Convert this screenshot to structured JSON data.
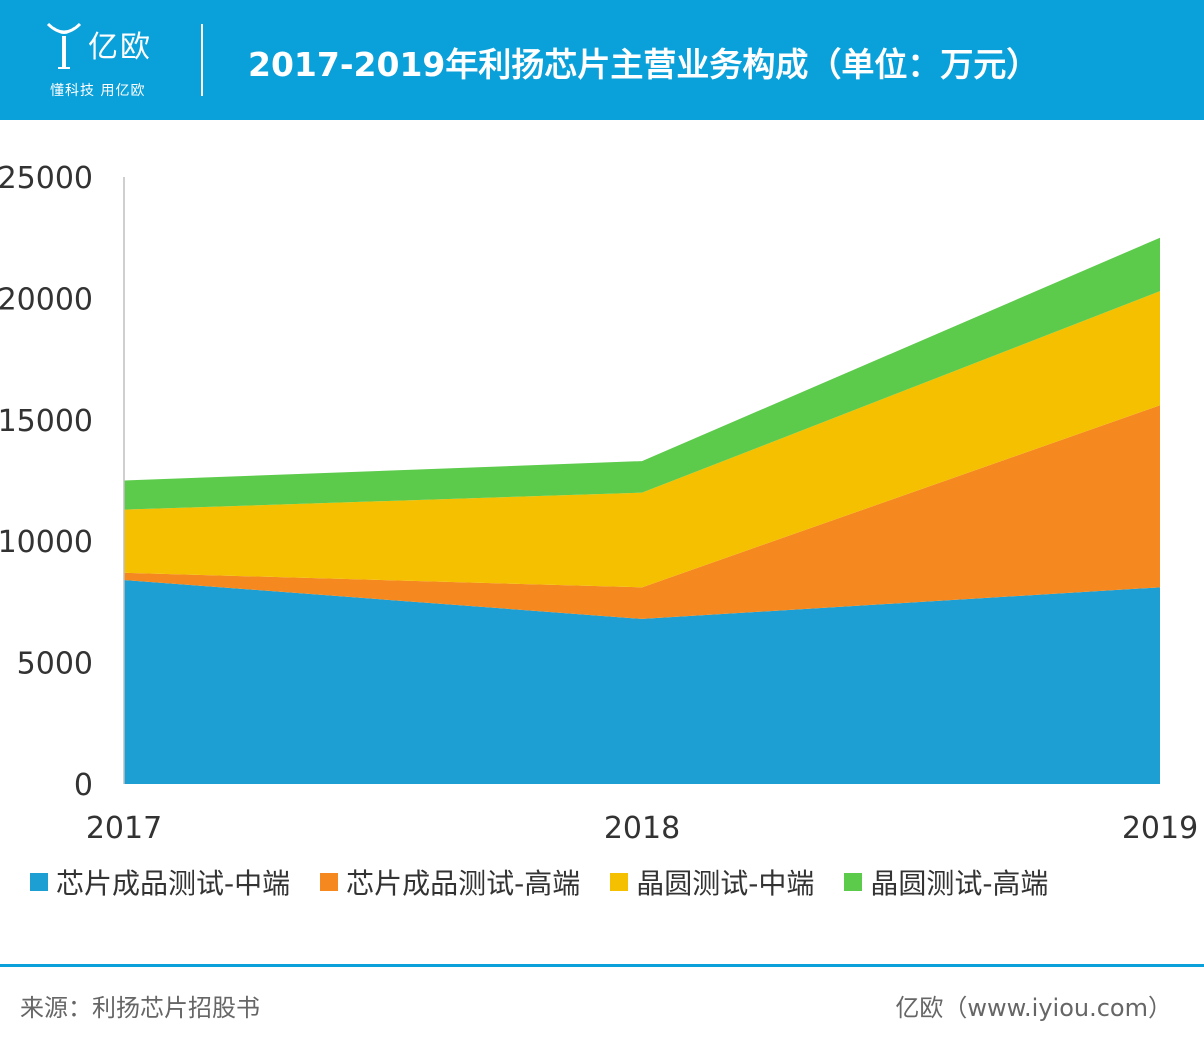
{
  "header": {
    "logo_name": "亿欧",
    "logo_slogan": "懂科技 用亿欧",
    "title": "2017-2019年利扬芯片主营业务构成（单位：万元）",
    "bg_color": "#0aa0da"
  },
  "chart_data": {
    "type": "area",
    "stacked": true,
    "title": "2017-2019年利扬芯片主营业务构成（单位：万元）",
    "categories": [
      "2017",
      "2018",
      "2019"
    ],
    "ylim": [
      0,
      25000
    ],
    "yticks": [
      0,
      5000,
      10000,
      15000,
      20000,
      25000
    ],
    "xlabel": "",
    "ylabel": "",
    "grid": false,
    "legend_position": "bottom",
    "series": [
      {
        "name": "芯片成品测试-中端",
        "color": "#1e9fd4",
        "values": [
          8400,
          6800,
          8100
        ]
      },
      {
        "name": "芯片成品测试-高端",
        "color": "#f5891f",
        "values": [
          300,
          1300,
          7500
        ]
      },
      {
        "name": "晶圆测试-中端",
        "color": "#f5c000",
        "values": [
          2600,
          3900,
          4700
        ]
      },
      {
        "name": "晶圆测试-高端",
        "color": "#5ccb4b",
        "values": [
          1200,
          1300,
          2200
        ]
      }
    ]
  },
  "footer": {
    "source": "来源：利扬芯片招股书",
    "credit": "亿欧（www.iyiou.com）"
  }
}
